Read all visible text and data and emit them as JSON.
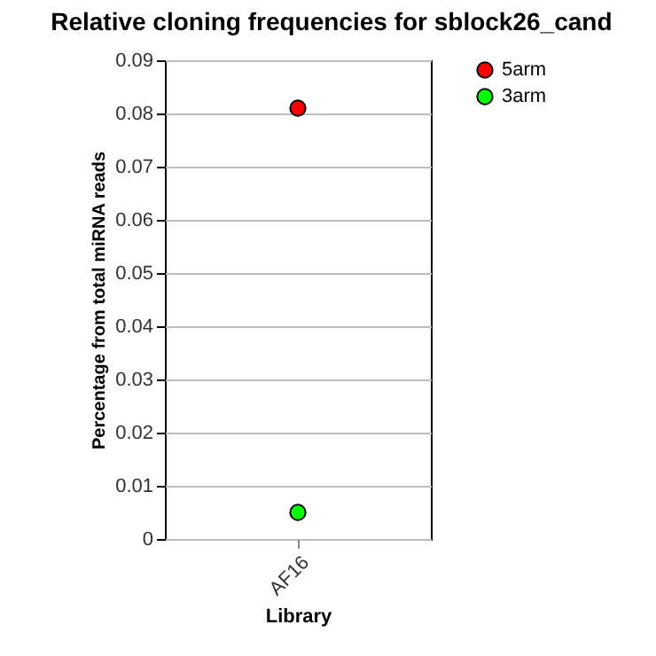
{
  "chart_data": {
    "type": "scatter",
    "title": "Relative cloning frequencies for sblock26_cand",
    "xlabel": "Library",
    "ylabel": "Percentage from total miRNA reads",
    "categories": [
      "AF16"
    ],
    "series": [
      {
        "name": "5arm",
        "color": "#ff0000",
        "values": [
          0.081
        ]
      },
      {
        "name": "3arm",
        "color": "#00ff00",
        "values": [
          0.005
        ]
      }
    ],
    "ylim": [
      0,
      0.09
    ],
    "yticks": [
      0,
      0.01,
      0.02,
      0.03,
      0.04,
      0.05,
      0.06,
      0.07,
      0.08,
      0.09
    ],
    "grid": "y",
    "legend": "top right",
    "marker": "circle"
  }
}
